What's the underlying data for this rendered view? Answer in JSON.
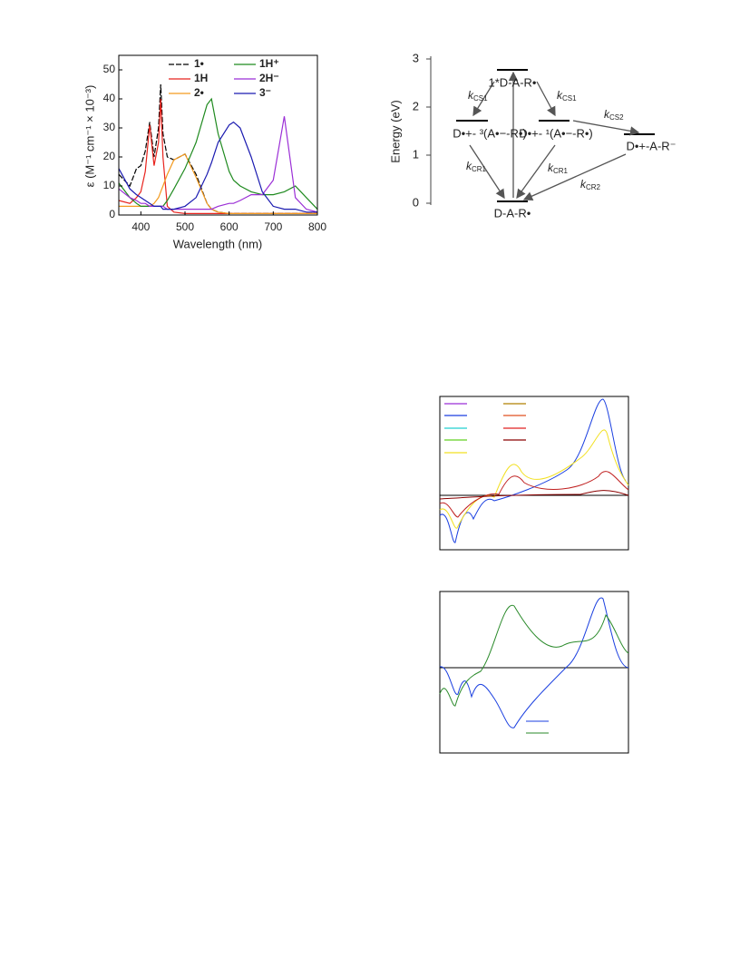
{
  "chart_data": {
    "type": "line",
    "xlabel": "Wavelength (nm)",
    "ylabel": "ε (M⁻¹ cm⁻¹ × 10⁻³)",
    "xlim": [
      350,
      800
    ],
    "ylim": [
      0,
      55
    ],
    "xticks": [
      400,
      500,
      600,
      700,
      800
    ],
    "yticks": [
      0,
      10,
      20,
      30,
      40,
      50
    ],
    "x": [
      350,
      375,
      390,
      400,
      410,
      420,
      430,
      440,
      445,
      450,
      460,
      475,
      500,
      525,
      550,
      560,
      575,
      600,
      610,
      625,
      650,
      675,
      700,
      725,
      750,
      775,
      800
    ],
    "series": [
      {
        "name": "1•",
        "color": "#000000",
        "dash": true,
        "values": [
          14,
          10,
          16,
          17,
          22,
          32,
          20,
          30,
          45,
          28,
          20,
          19,
          21,
          14,
          4,
          2,
          1,
          0.5,
          0.5,
          0.5,
          0.5,
          0.5,
          0.5,
          0.5,
          0.5,
          0.5,
          0.5
        ]
      },
      {
        "name": "1H",
        "color": "#e8231d",
        "values": [
          5,
          4,
          6,
          8,
          15,
          31,
          17,
          25,
          40,
          20,
          3,
          1,
          0.5,
          0.5,
          0.5,
          0.5,
          0.5,
          0.5,
          0.5,
          0.5,
          0.5,
          0.5,
          0.5,
          0.5,
          0.5,
          0.5,
          0.5
        ]
      },
      {
        "name": "2•",
        "color": "#f39a1f",
        "values": [
          3,
          3,
          3,
          3,
          3,
          3,
          4,
          6,
          8,
          10,
          14,
          19,
          21,
          13,
          4,
          2,
          1,
          0.5,
          0.5,
          0.5,
          0.5,
          0.5,
          0.5,
          0.5,
          0.5,
          0.5,
          0.5
        ]
      },
      {
        "name": "1H⁺",
        "color": "#1f8a1f",
        "values": [
          11,
          6,
          4,
          3,
          3,
          3,
          3,
          3,
          3,
          3,
          5,
          9,
          16,
          25,
          38,
          40,
          28,
          15,
          12,
          10,
          8,
          7,
          7,
          8,
          10,
          6,
          2
        ]
      },
      {
        "name": "2H⁻",
        "color": "#9b2fd6",
        "values": [
          9,
          6,
          5,
          4,
          4,
          3,
          3,
          3,
          3,
          3,
          2,
          2,
          2,
          2,
          2,
          2,
          3,
          4,
          4,
          5,
          7,
          7,
          12,
          34,
          6,
          2,
          1
        ]
      },
      {
        "name": "3⁻",
        "color": "#1a1ab0",
        "values": [
          16,
          9,
          7,
          6,
          5,
          4,
          3,
          3,
          3,
          2,
          2,
          2,
          3,
          6,
          14,
          18,
          25,
          31,
          32,
          30,
          20,
          8,
          3,
          2,
          2,
          1,
          1
        ]
      }
    ]
  },
  "diagram": {
    "ylabel": "Energy (eV)",
    "yticks": [
      0,
      1,
      2,
      3
    ],
    "states": [
      "1*D-A-R•",
      "D•+- ³(A•−-R•)",
      "D•+- ¹(A•−-R•)",
      "D•+-A-R⁻",
      "D-A-R•"
    ],
    "rates": [
      {
        "k": "k",
        "sub": "CS1"
      },
      {
        "k": "k",
        "sub": "CS1"
      },
      {
        "k": "k",
        "sub": "CS2"
      },
      {
        "k": "k",
        "sub": "CR1"
      },
      {
        "k": "k",
        "sub": "CR1"
      },
      {
        "k": "k",
        "sub": "CR2"
      }
    ]
  }
}
